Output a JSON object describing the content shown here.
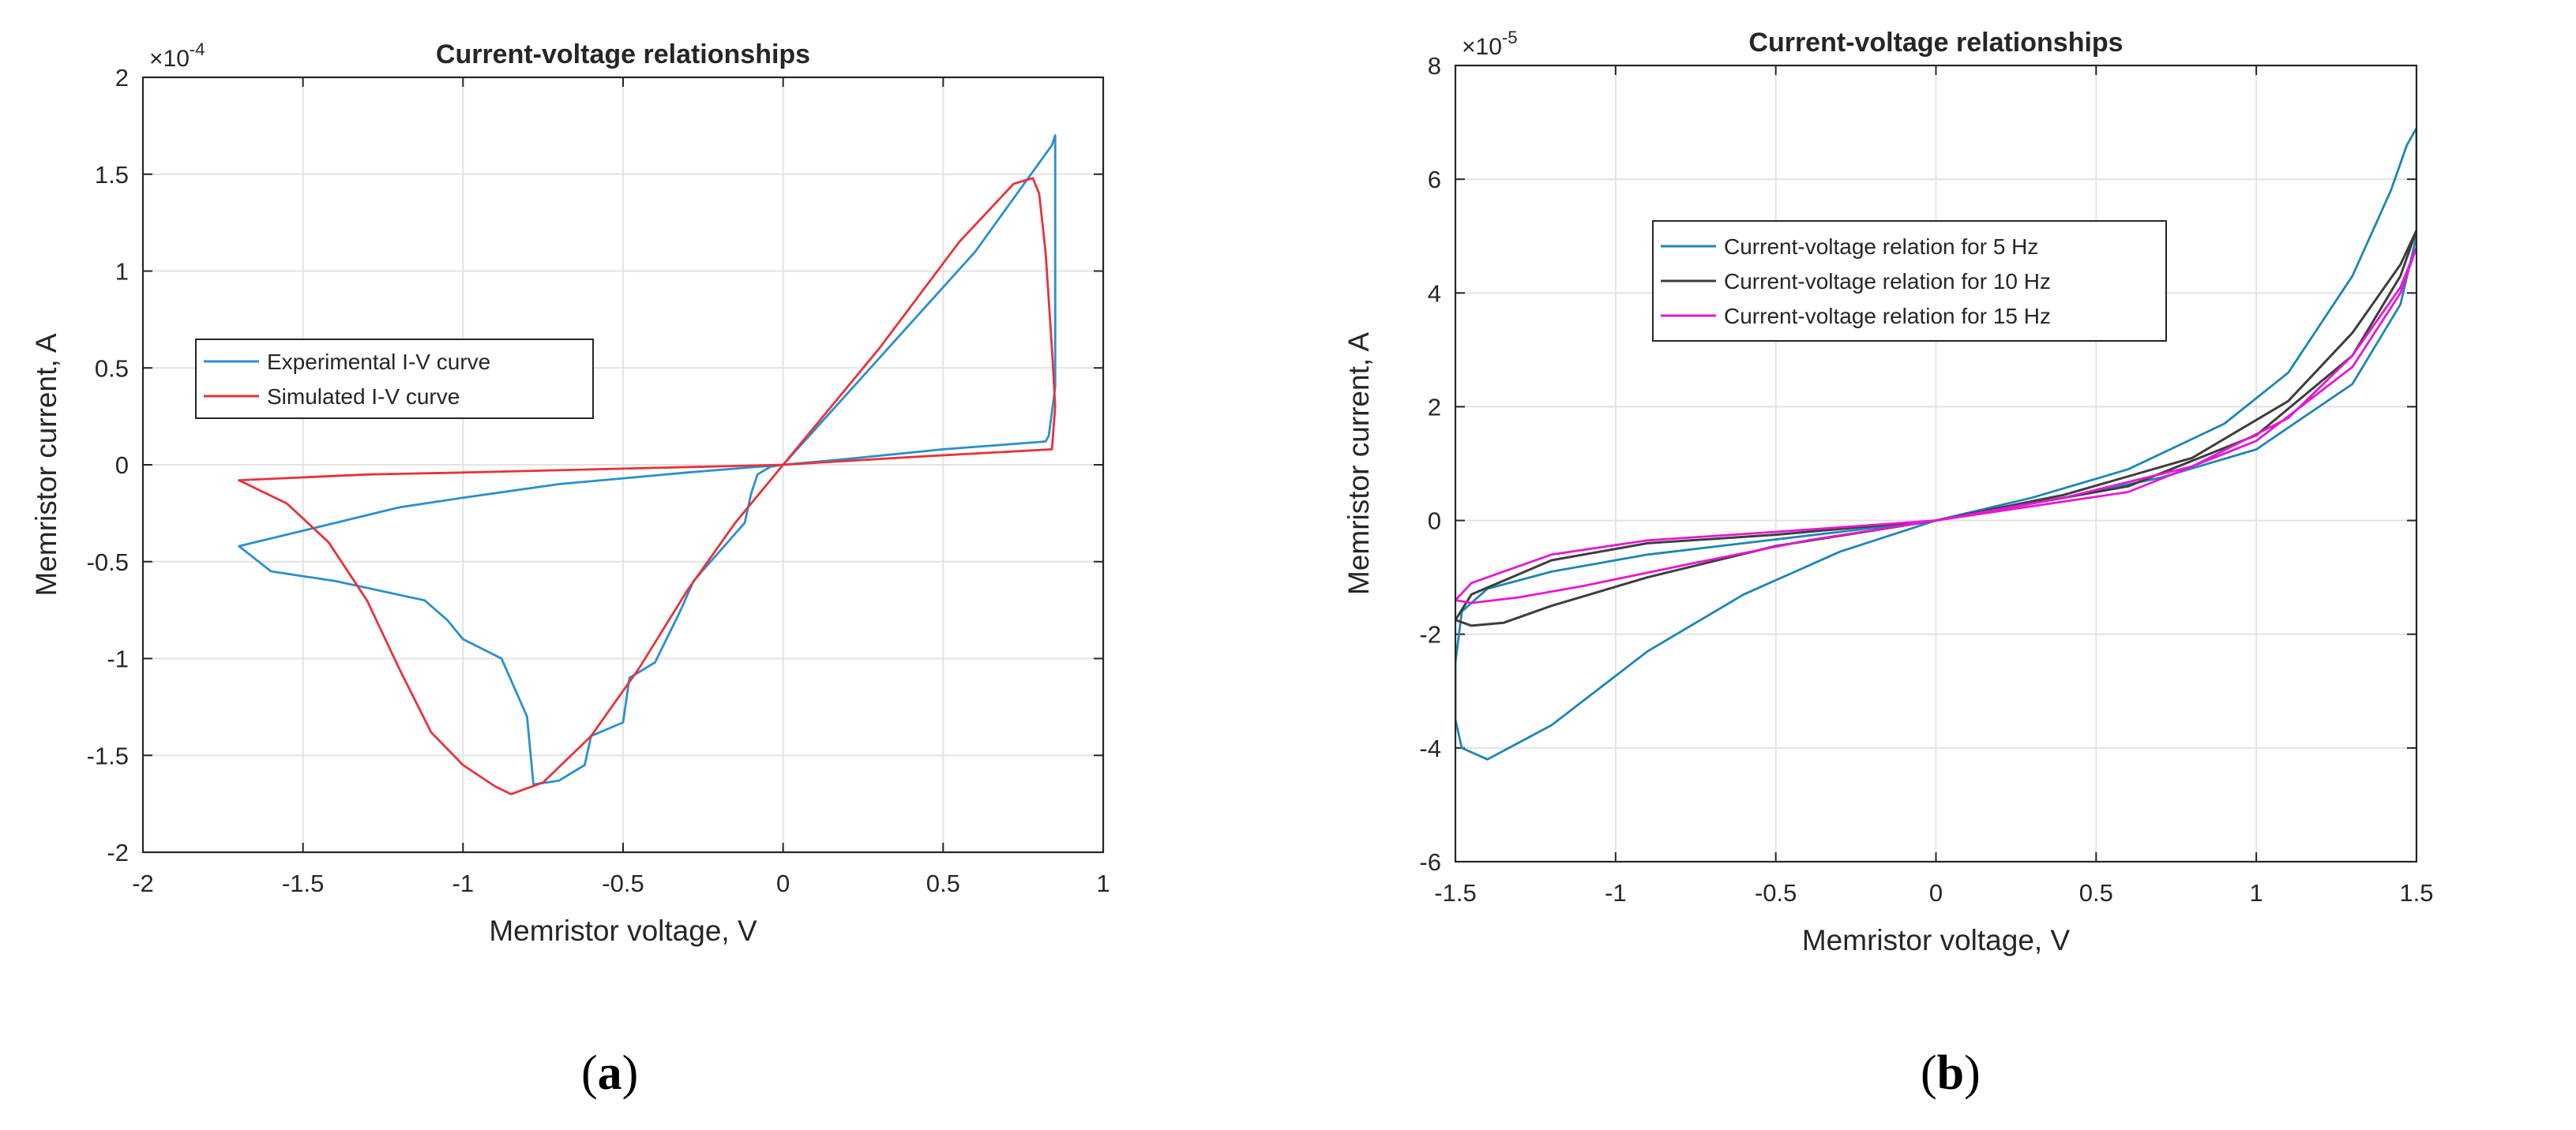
{
  "chart_data": [
    {
      "type": "line",
      "panel_label": "a",
      "title": "Current-voltage relationships",
      "xlabel": "Memristor voltage, V",
      "ylabel": "Memristor current, A",
      "x_ticks": [
        "-2",
        "-1.5",
        "-1",
        "-0.5",
        "0",
        "0.5",
        "1"
      ],
      "y_ticks": [
        "-2",
        "-1.5",
        "-1",
        "-0.5",
        "0",
        "0.5",
        "1",
        "1.5",
        "2"
      ],
      "y_scale_label": "×10",
      "y_scale_exp": "-4",
      "xlim": [
        -2,
        1
      ],
      "ylim": [
        -2,
        2
      ],
      "grid": true,
      "legend_position": "left-middle",
      "series": [
        {
          "name": "Experimental I-V curve",
          "color": "#2a8fd0",
          "x": [
            0,
            0.3,
            0.6,
            0.84,
            0.85,
            0.85,
            0.83,
            0.82,
            0.5,
            0.2,
            0,
            -0.3,
            -0.7,
            -1,
            -1.2,
            -1.45,
            -1.7,
            -1.6,
            -1.4,
            -1.12,
            -1.05,
            -1,
            -0.88,
            -0.8,
            -0.78,
            -0.7,
            -0.62,
            -0.6,
            -0.5,
            -0.48,
            -0.4,
            -0.32,
            -0.28,
            -0.2,
            -0.12,
            -0.1,
            -0.08,
            -0.04,
            0
          ],
          "y": [
            0,
            0.55,
            1.1,
            1.65,
            1.7,
            0.4,
            0.15,
            0.12,
            0.08,
            0.03,
            0,
            -0.04,
            -0.1,
            -0.17,
            -0.22,
            -0.32,
            -0.42,
            -0.55,
            -0.6,
            -0.7,
            -0.8,
            -0.9,
            -1.0,
            -1.3,
            -1.65,
            -1.63,
            -1.55,
            -1.4,
            -1.33,
            -1.1,
            -1.02,
            -0.75,
            -0.6,
            -0.45,
            -0.3,
            -0.15,
            -0.05,
            -0.01,
            0
          ]
        },
        {
          "name": "Simulated I-V curve",
          "color": "#e8323a",
          "x": [
            0,
            0.3,
            0.55,
            0.72,
            0.78,
            0.8,
            0.82,
            0.84,
            0.85,
            0.84,
            0.4,
            0,
            -0.5,
            -1.0,
            -1.3,
            -1.7,
            -1.55,
            -1.42,
            -1.3,
            -1.2,
            -1.1,
            -1.0,
            -0.9,
            -0.85,
            -0.75,
            -0.6,
            -0.45,
            -0.3,
            -0.15,
            0
          ],
          "y": [
            0,
            0.6,
            1.15,
            1.45,
            1.48,
            1.4,
            1.1,
            0.6,
            0.3,
            0.08,
            0.04,
            0,
            -0.02,
            -0.04,
            -0.05,
            -0.08,
            -0.2,
            -0.4,
            -0.7,
            -1.05,
            -1.38,
            -1.55,
            -1.66,
            -1.7,
            -1.64,
            -1.4,
            -1.05,
            -0.65,
            -0.3,
            0
          ]
        }
      ]
    },
    {
      "type": "line",
      "panel_label": "b",
      "title": "Current-voltage relationships",
      "xlabel": "Memristor voltage, V",
      "ylabel": "Memristor current, A",
      "x_ticks": [
        "-1.5",
        "-1",
        "-0.5",
        "0",
        "0.5",
        "1",
        "1.5"
      ],
      "y_ticks": [
        "-6",
        "-4",
        "-2",
        "0",
        "2",
        "4",
        "6",
        "8"
      ],
      "y_scale_label": "×10",
      "y_scale_exp": "-5",
      "xlim": [
        -1.5,
        1.5
      ],
      "ylim": [
        -6,
        8
      ],
      "grid": true,
      "legend_position": "upper-left",
      "series": [
        {
          "name": "Current-voltage relation for 5 Hz",
          "color": "#1d86b5",
          "x": [
            0,
            0.3,
            0.6,
            0.9,
            1.1,
            1.3,
            1.42,
            1.47,
            1.5,
            1.5,
            1.45,
            1.3,
            1.0,
            0.7,
            0.4,
            0,
            -0.3,
            -0.6,
            -0.9,
            -1.2,
            -1.4,
            -1.48,
            -1.5,
            -1.5,
            -1.48,
            -1.4,
            -1.2,
            -0.9,
            -0.6,
            -0.3,
            0
          ],
          "y": [
            0,
            0.4,
            0.9,
            1.7,
            2.6,
            4.3,
            5.8,
            6.6,
            6.9,
            5.0,
            3.8,
            2.4,
            1.25,
            0.75,
            0.4,
            0,
            -0.2,
            -0.4,
            -0.6,
            -0.9,
            -1.2,
            -1.6,
            -2.5,
            -3.5,
            -4.0,
            -4.2,
            -3.6,
            -2.3,
            -1.3,
            -0.55,
            0
          ]
        },
        {
          "name": "Current-voltage relation for 10 Hz",
          "color": "#3d3d3d",
          "x": [
            0,
            0.4,
            0.8,
            1.1,
            1.3,
            1.45,
            1.5,
            1.45,
            1.3,
            1.0,
            0.6,
            0,
            -0.5,
            -0.9,
            -1.2,
            -1.45,
            -1.5,
            -1.45,
            -1.35,
            -1.2,
            -0.9,
            -0.5,
            0
          ],
          "y": [
            0,
            0.45,
            1.1,
            2.1,
            3.3,
            4.5,
            5.1,
            4.3,
            2.9,
            1.5,
            0.6,
            0,
            -0.25,
            -0.4,
            -0.7,
            -1.3,
            -1.75,
            -1.85,
            -1.8,
            -1.5,
            -1.0,
            -0.45,
            0
          ],
          "stroke_width": 3
        },
        {
          "name": "Current-voltage relation for 15 Hz",
          "color": "#e617d5",
          "x": [
            0,
            0.4,
            0.8,
            1.1,
            1.3,
            1.45,
            1.5,
            1.45,
            1.3,
            1.0,
            0.6,
            0,
            -0.5,
            -0.9,
            -1.2,
            -1.45,
            -1.5,
            -1.45,
            -1.3,
            -1.1,
            -0.8,
            -0.4,
            0
          ],
          "y": [
            0,
            0.4,
            0.95,
            1.8,
            2.9,
            4.1,
            4.8,
            4.0,
            2.7,
            1.4,
            0.5,
            0,
            -0.2,
            -0.35,
            -0.6,
            -1.1,
            -1.4,
            -1.45,
            -1.35,
            -1.15,
            -0.8,
            -0.35,
            0
          ]
        }
      ]
    }
  ],
  "captions": {
    "a": "a",
    "b": "b"
  }
}
